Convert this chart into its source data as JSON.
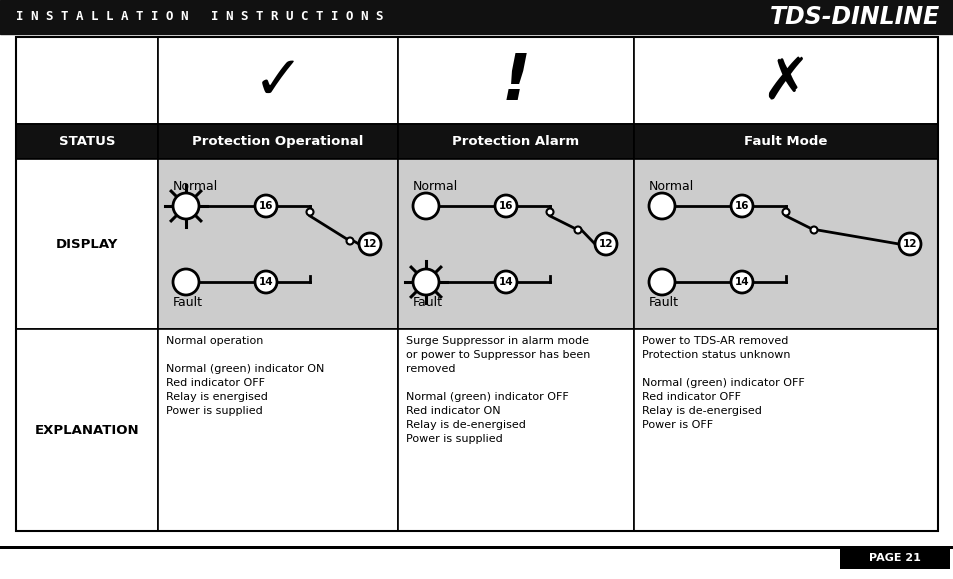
{
  "title_bar_color": "#111111",
  "title_text": "I N S T A L L A T I O N   I N S T R U C T I O N S",
  "title_text_color": "#ffffff",
  "brand_text": "TDS-DINLINE",
  "brand_color": "#ffffff",
  "page_bg": "#ffffff",
  "header_row_bg": "#111111",
  "header_row_text_color": "#ffffff",
  "display_row_bg": "#cccccc",
  "col0_label": "STATUS",
  "col1_label": "Protection Operational",
  "col2_label": "Protection Alarm",
  "col3_label": "Fault Mode",
  "row1_label": "DISPLAY",
  "row2_label": "EXPLANATION",
  "col1_explanation": "Normal operation\n\nNormal (green) indicator ON\nRed indicator OFF\nRelay is energised\nPower is supplied",
  "col2_explanation": "Surge Suppressor in alarm mode\nor power to Suppressor has been\nremoved\n\nNormal (green) indicator OFF\nRed indicator ON\nRelay is de-energised\nPower is supplied",
  "col3_explanation": "Power to TDS-AR removed\nProtection status unknown\n\nNormal (green) indicator OFF\nRed indicator OFF\nRelay is de-energised\nPower is OFF",
  "page_number": "PAGE 21"
}
